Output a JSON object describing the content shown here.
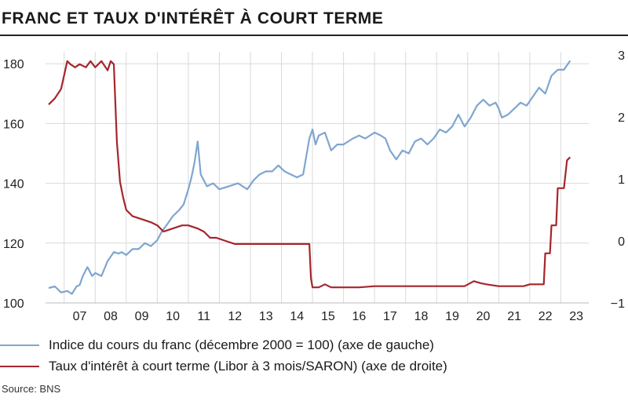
{
  "chart_data": {
    "type": "line",
    "title": "FRANC ET TAUX D'INTÉRÊT À COURT TERME",
    "x_tick_labels": [
      "07",
      "08",
      "09",
      "10",
      "11",
      "12",
      "13",
      "14",
      "15",
      "16",
      "17",
      "18",
      "19",
      "20",
      "21",
      "22",
      "23"
    ],
    "xlim": [
      2006.4,
      2023.9
    ],
    "y_left": {
      "ticks": [
        100,
        120,
        140,
        160,
        180
      ],
      "ylim": [
        100,
        184
      ]
    },
    "y_right": {
      "ticks": [
        -1,
        0,
        1,
        2,
        3
      ],
      "ylim": [
        -1,
        3.05
      ]
    },
    "grid": true,
    "legend_position": "bottom",
    "series": [
      {
        "name": "Indice du cours du franc (décembre 2000 = 100) (axe de gauche)",
        "axis": "left",
        "color": "#7fa6cf",
        "x": [
          2006.5,
          2006.7,
          2006.9,
          2007.1,
          2007.25,
          2007.4,
          2007.5,
          2007.6,
          2007.75,
          2007.9,
          2008.0,
          2008.2,
          2008.4,
          2008.6,
          2008.75,
          2008.85,
          2009.0,
          2009.2,
          2009.4,
          2009.6,
          2009.8,
          2010.0,
          2010.15,
          2010.3,
          2010.5,
          2010.7,
          2010.85,
          2011.0,
          2011.1,
          2011.2,
          2011.3,
          2011.4,
          2011.6,
          2011.8,
          2012.0,
          2012.3,
          2012.6,
          2012.9,
          2013.1,
          2013.3,
          2013.5,
          2013.7,
          2013.9,
          2014.1,
          2014.3,
          2014.5,
          2014.7,
          2014.9,
          2015.0,
          2015.1,
          2015.2,
          2015.4,
          2015.6,
          2015.8,
          2016.0,
          2016.3,
          2016.5,
          2016.7,
          2017.0,
          2017.2,
          2017.35,
          2017.5,
          2017.7,
          2017.9,
          2018.1,
          2018.3,
          2018.5,
          2018.7,
          2018.9,
          2019.1,
          2019.3,
          2019.5,
          2019.7,
          2019.9,
          2020.1,
          2020.3,
          2020.5,
          2020.7,
          2020.9,
          2021.0,
          2021.1,
          2021.3,
          2021.5,
          2021.7,
          2021.9,
          2022.1,
          2022.3,
          2022.5,
          2022.7,
          2022.9,
          2023.1,
          2023.3
        ],
        "y": [
          105,
          105.5,
          103.5,
          104,
          103,
          105.5,
          106,
          109,
          112,
          109,
          110,
          109,
          114,
          117,
          116.5,
          117,
          116,
          118,
          118,
          120,
          119,
          121,
          124,
          126,
          129,
          131,
          133,
          138,
          142,
          147,
          154,
          143,
          139,
          140,
          138,
          139,
          140,
          138,
          141,
          143,
          144,
          144,
          146,
          144,
          143,
          142,
          143,
          155,
          158,
          153,
          156,
          157,
          151,
          153,
          153,
          155,
          156,
          155,
          157,
          156,
          155,
          151,
          148,
          151,
          150,
          154,
          155,
          153,
          155,
          158,
          157,
          159,
          163,
          159,
          162,
          166,
          168,
          166,
          167,
          165,
          162,
          163,
          165,
          167,
          166,
          169,
          172,
          170,
          176,
          178,
          178,
          181
        ]
      },
      {
        "name": "Taux d'intérêt à court terme (Libor à 3 mois/SARON) (axe de droite)",
        "axis": "right",
        "color": "#a4262c",
        "x": [
          2006.5,
          2006.7,
          2006.9,
          2007.1,
          2007.2,
          2007.35,
          2007.5,
          2007.7,
          2007.85,
          2008.0,
          2008.2,
          2008.4,
          2008.5,
          2008.6,
          2008.7,
          2008.8,
          2008.9,
          2009.0,
          2009.2,
          2009.5,
          2009.8,
          2010.0,
          2010.2,
          2010.5,
          2010.8,
          2011.0,
          2011.3,
          2011.5,
          2011.7,
          2011.9,
          2012.2,
          2012.5,
          2012.8,
          2013.0,
          2013.5,
          2014.0,
          2014.5,
          2014.9,
          2014.95,
          2015.0,
          2015.2,
          2015.4,
          2015.6,
          2016.0,
          2016.5,
          2017.0,
          2017.5,
          2018.0,
          2018.5,
          2019.0,
          2019.3,
          2019.6,
          2019.9,
          2020.2,
          2020.4,
          2020.6,
          2021.0,
          2021.5,
          2021.8,
          2022.0,
          2022.3,
          2022.45,
          2022.5,
          2022.65,
          2022.7,
          2022.85,
          2022.9,
          2023.1,
          2023.2,
          2023.3
        ],
        "y": [
          2.2,
          2.3,
          2.45,
          2.9,
          2.85,
          2.8,
          2.85,
          2.8,
          2.9,
          2.8,
          2.9,
          2.75,
          2.9,
          2.85,
          1.6,
          0.95,
          0.7,
          0.5,
          0.4,
          0.35,
          0.3,
          0.25,
          0.15,
          0.2,
          0.25,
          0.25,
          0.2,
          0.15,
          0.05,
          0.05,
          0.0,
          -0.05,
          -0.05,
          -0.05,
          -0.05,
          -0.05,
          -0.05,
          -0.05,
          -0.6,
          -0.75,
          -0.75,
          -0.7,
          -0.75,
          -0.75,
          -0.75,
          -0.73,
          -0.73,
          -0.73,
          -0.73,
          -0.73,
          -0.73,
          -0.73,
          -0.73,
          -0.65,
          -0.68,
          -0.7,
          -0.73,
          -0.73,
          -0.73,
          -0.7,
          -0.7,
          -0.7,
          -0.2,
          -0.2,
          0.25,
          0.25,
          0.85,
          0.85,
          1.3,
          1.35
        ]
      }
    ],
    "source": "Source: BNS"
  }
}
